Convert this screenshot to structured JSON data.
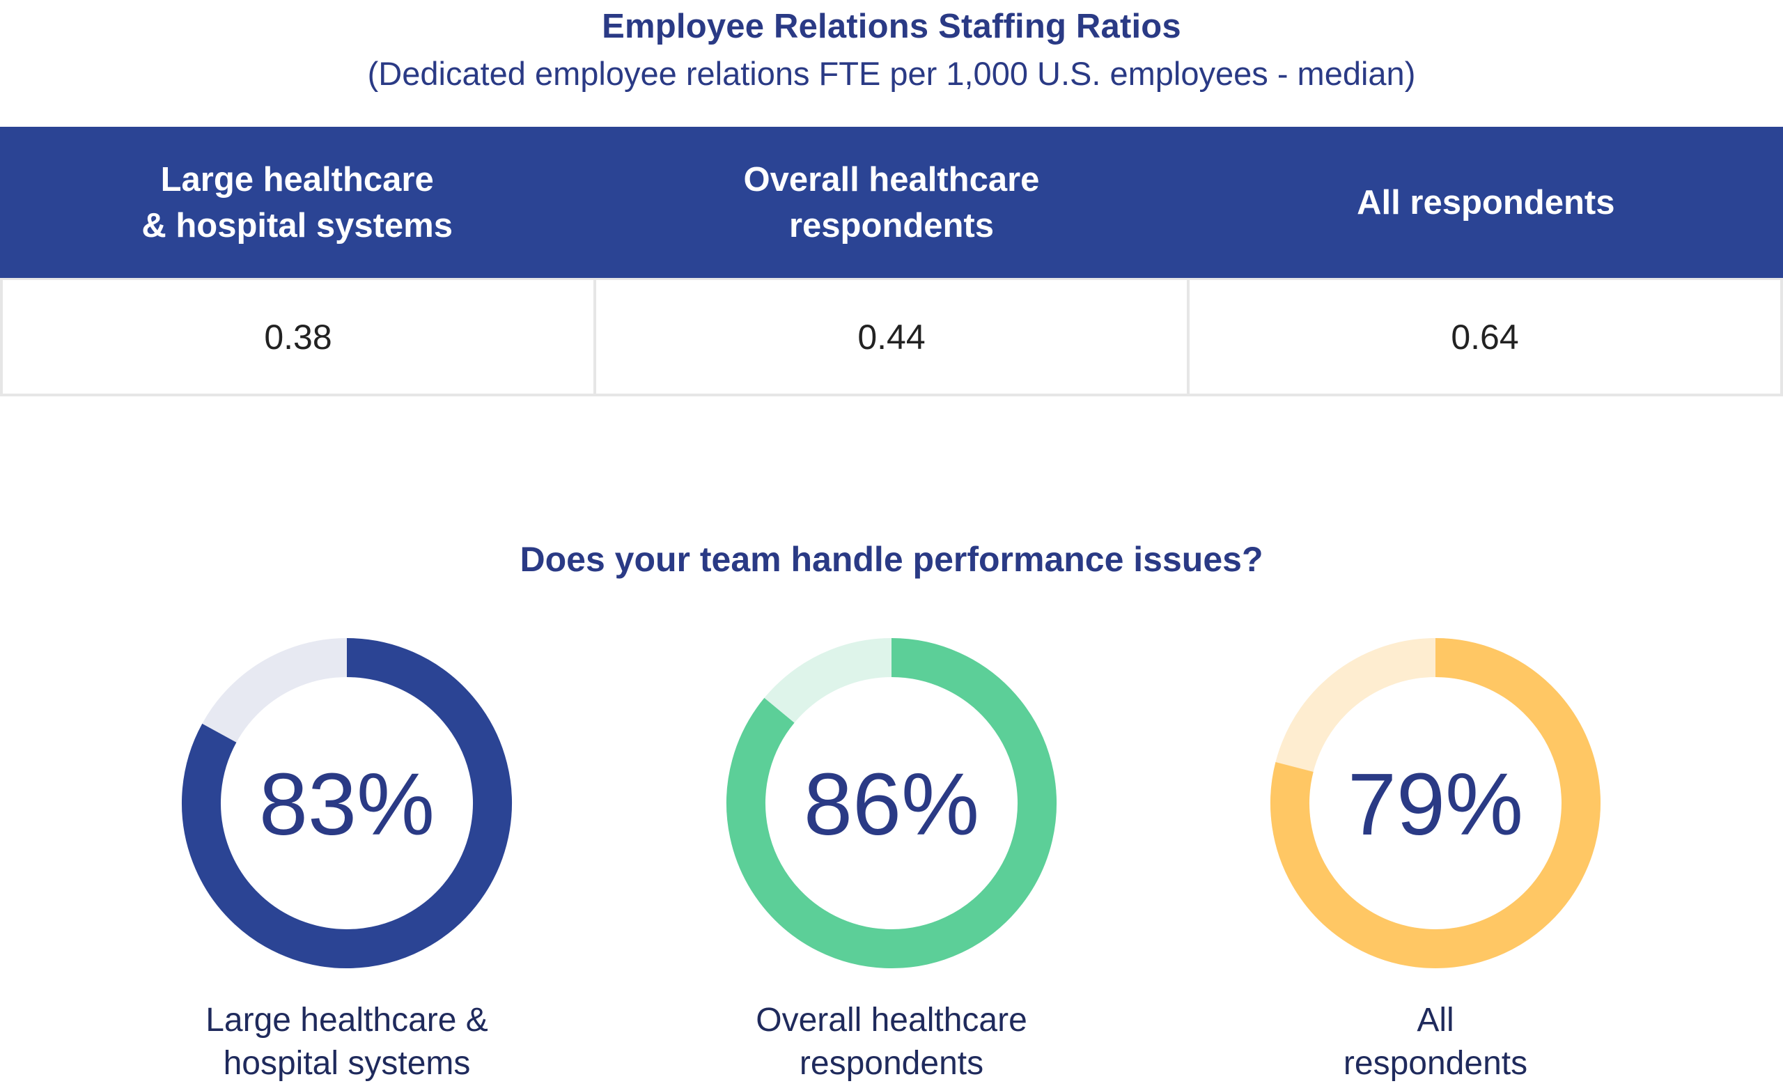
{
  "table": {
    "title": "Employee Relations Staffing Ratios",
    "subtitle": "(Dedicated employee relations FTE per 1,000 U.S. employees - median)",
    "headers": [
      "Large healthcare\n& hospital systems",
      "Overall healthcare\nrespondents",
      "All respondents"
    ],
    "values": [
      "0.38",
      "0.44",
      "0.64"
    ]
  },
  "question": "Does your team handle performance issues?",
  "donuts": [
    {
      "value_text": "83%",
      "label": "Large healthcare &\nhospital systems"
    },
    {
      "value_text": "86%",
      "label": "Overall healthcare\nrespondents"
    },
    {
      "value_text": "79%",
      "label": "All\nrespondents"
    }
  ],
  "chart_data": [
    {
      "type": "table",
      "title": "Employee Relations Staffing Ratios",
      "subtitle": "(Dedicated employee relations FTE per 1,000 U.S. employees - median)",
      "columns": [
        "Large healthcare & hospital systems",
        "Overall healthcare respondents",
        "All respondents"
      ],
      "values": [
        0.38,
        0.44,
        0.64
      ]
    },
    {
      "type": "pie",
      "title": "Does your team handle performance issues?",
      "categories": [
        "Large healthcare & hospital systems",
        "Overall healthcare respondents",
        "All respondents"
      ],
      "values": [
        83,
        86,
        79
      ],
      "colors": [
        "#2b4494",
        "#5ccf98",
        "#ffc764"
      ],
      "track_colors": [
        "#e7e9f2",
        "#def4ea",
        "#feedd0"
      ]
    }
  ]
}
